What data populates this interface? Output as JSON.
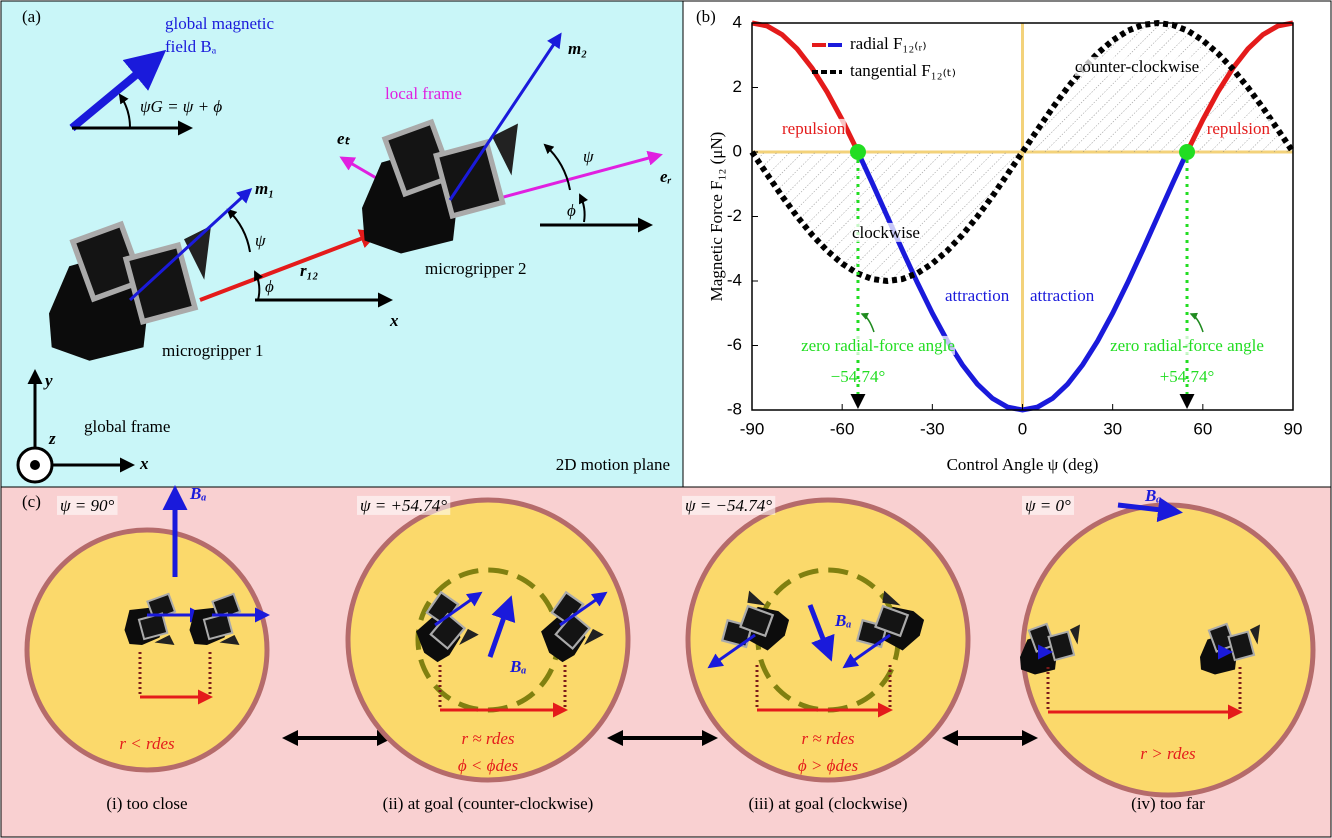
{
  "panel_a": {
    "label": "(a)",
    "field_line1": "global magnetic",
    "field_line2": "field Bₐ",
    "angle_eq": "ψG = ψ + ϕ",
    "local_frame": "local frame",
    "m2": "m₂",
    "et": "eₜ",
    "er": "eᵣ",
    "psi2": "ψ",
    "phi2": "ϕ",
    "m1": "m₁",
    "psi1": "ψ",
    "r12": "r₁₂",
    "phi1": "ϕ",
    "x_local": "x",
    "gripper2": "microgripper 2",
    "gripper1": "microgripper 1",
    "y_axis": "y",
    "z_axis": "z",
    "x_axis": "x",
    "global_frame": "global frame",
    "plane": "2D motion plane"
  },
  "chart_data": {
    "type": "line",
    "panel_label": "(b)",
    "x_label": "Control Angle ψ (deg)",
    "y_label": "Magnetic Force F₁₂ (μN)",
    "x": [
      -90,
      -85,
      -80,
      -75,
      -70,
      -65,
      -60,
      -55,
      -50,
      -45,
      -40,
      -35,
      -30,
      -25,
      -20,
      -15,
      -10,
      -5,
      0,
      5,
      10,
      15,
      20,
      25,
      30,
      35,
      40,
      45,
      50,
      55,
      60,
      65,
      70,
      75,
      80,
      85,
      90
    ],
    "series": [
      {
        "name": "radial F₁₂₍ᵣ₎",
        "color": "#1a1adb",
        "positive_color": "#e41b1b",
        "style": "solid",
        "values": [
          4,
          3.91,
          3.64,
          3.2,
          2.6,
          1.86,
          1,
          0.05,
          -0.96,
          -2,
          -3.04,
          -4.05,
          -5,
          -5.86,
          -6.6,
          -7.2,
          -7.64,
          -7.91,
          -8,
          -7.91,
          -7.64,
          -7.2,
          -6.6,
          -5.86,
          -5,
          -4.05,
          -3.04,
          -2,
          -0.96,
          0.05,
          1,
          1.86,
          2.6,
          3.2,
          3.64,
          3.91,
          4
        ]
      },
      {
        "name": "tangential F₁₂₍ₜ₎",
        "color": "#000000",
        "style": "dotted",
        "values": [
          0,
          -0.69,
          -1.37,
          -2,
          -2.57,
          -3.06,
          -3.46,
          -3.76,
          -3.94,
          -4,
          -3.94,
          -3.76,
          -3.46,
          -3.06,
          -2.57,
          -2,
          -1.37,
          -0.69,
          0,
          0.69,
          1.37,
          2,
          2.57,
          3.06,
          3.46,
          3.76,
          3.94,
          4,
          3.94,
          3.76,
          3.46,
          3.06,
          2.57,
          2,
          1.37,
          0.69,
          0
        ]
      }
    ],
    "xlim": [
      -90,
      90
    ],
    "ylim": [
      -8,
      4
    ],
    "xticks": [
      -90,
      -60,
      -30,
      0,
      30,
      60,
      90
    ],
    "yticks": [
      -8,
      -6,
      -4,
      -2,
      0,
      2,
      4
    ],
    "zero_angles": [
      -54.74,
      54.74
    ],
    "zero_angle_labels": [
      "−54.74°",
      "+54.74°"
    ],
    "zero_color": "#22dd22",
    "annotations": {
      "repulsion_left": "repulsion",
      "repulsion_right": "repulsion",
      "ccw": "counter-clockwise",
      "cw": "clockwise",
      "attraction_left": "attraction",
      "attraction_right": "attraction",
      "zero_left": "zero radial-force angle",
      "zero_right": "zero radial-force angle"
    }
  },
  "panel_c": {
    "label": "(c)",
    "states": [
      {
        "angle": "ψ = 90°",
        "field": "Bₐ",
        "conditions": [
          "r < rdes"
        ],
        "caption": "(i) too close"
      },
      {
        "angle": "ψ = +54.74°",
        "field": "Bₐ",
        "conditions": [
          "r  ≈ rdes",
          "ϕ < ϕdes"
        ],
        "caption": "(ii) at goal (counter-clockwise)"
      },
      {
        "angle": "ψ = −54.74°",
        "field": "Bₐ",
        "conditions": [
          "r  ≈ rdes",
          "ϕ > ϕdes"
        ],
        "caption": "(iii) at goal (clockwise)"
      },
      {
        "angle": "ψ = 0°",
        "field": "Bₐ",
        "conditions": [
          "r > rdes"
        ],
        "caption": "(iv) too far"
      }
    ]
  }
}
